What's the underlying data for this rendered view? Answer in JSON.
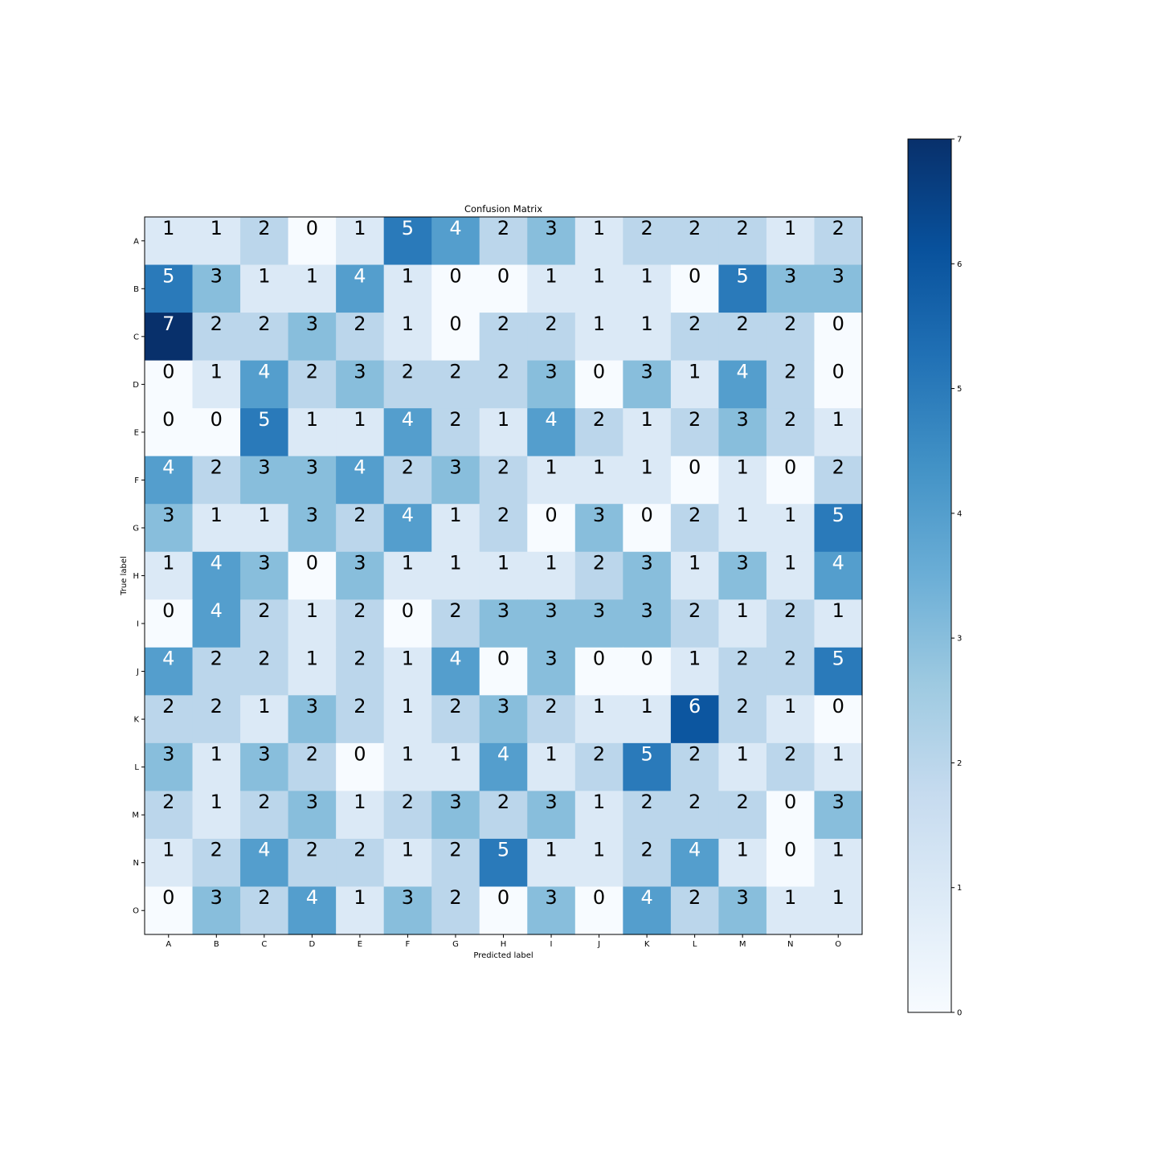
{
  "chart_data": {
    "type": "heatmap",
    "title": "Confusion Matrix",
    "xlabel": "Predicted label",
    "ylabel": "True label",
    "x_categories": [
      "A",
      "B",
      "C",
      "D",
      "E",
      "F",
      "G",
      "H",
      "I",
      "J",
      "K",
      "L",
      "M",
      "N",
      "O"
    ],
    "y_categories": [
      "A",
      "B",
      "C",
      "D",
      "E",
      "F",
      "G",
      "H",
      "I",
      "J",
      "K",
      "L",
      "M",
      "N",
      "O"
    ],
    "values": [
      [
        1,
        1,
        2,
        0,
        1,
        5,
        4,
        2,
        3,
        1,
        2,
        2,
        2,
        1,
        2
      ],
      [
        5,
        3,
        1,
        1,
        4,
        1,
        0,
        0,
        1,
        1,
        1,
        0,
        5,
        3,
        3
      ],
      [
        7,
        2,
        2,
        3,
        2,
        1,
        0,
        2,
        2,
        1,
        1,
        2,
        2,
        2,
        0
      ],
      [
        0,
        1,
        4,
        2,
        3,
        2,
        2,
        2,
        3,
        0,
        3,
        1,
        4,
        2,
        0
      ],
      [
        0,
        0,
        5,
        1,
        1,
        4,
        2,
        1,
        4,
        2,
        1,
        2,
        3,
        2,
        1
      ],
      [
        4,
        2,
        3,
        3,
        4,
        2,
        3,
        2,
        1,
        1,
        1,
        0,
        1,
        0,
        2
      ],
      [
        3,
        1,
        1,
        3,
        2,
        4,
        1,
        2,
        0,
        3,
        0,
        2,
        1,
        1,
        5
      ],
      [
        1,
        4,
        3,
        0,
        3,
        1,
        1,
        1,
        1,
        2,
        3,
        1,
        3,
        1,
        4
      ],
      [
        0,
        4,
        2,
        1,
        2,
        0,
        2,
        3,
        3,
        3,
        3,
        2,
        1,
        2,
        1
      ],
      [
        4,
        2,
        2,
        1,
        2,
        1,
        4,
        0,
        3,
        0,
        0,
        1,
        2,
        2,
        5
      ],
      [
        2,
        2,
        1,
        3,
        2,
        1,
        2,
        3,
        2,
        1,
        1,
        6,
        2,
        1,
        0
      ],
      [
        3,
        1,
        3,
        2,
        0,
        1,
        1,
        4,
        1,
        2,
        5,
        2,
        1,
        2,
        1
      ],
      [
        2,
        1,
        2,
        3,
        1,
        2,
        3,
        2,
        3,
        1,
        2,
        2,
        2,
        0,
        3
      ],
      [
        1,
        2,
        4,
        2,
        2,
        1,
        2,
        5,
        1,
        1,
        2,
        4,
        1,
        0,
        1
      ],
      [
        0,
        3,
        2,
        4,
        1,
        3,
        2,
        0,
        3,
        0,
        4,
        2,
        3,
        1,
        1
      ]
    ],
    "colormap": "Blues",
    "vmin": 0,
    "vmax": 7,
    "colorbar_ticks": [
      "0",
      "1",
      "2",
      "3",
      "4",
      "5",
      "6",
      "7"
    ],
    "grid": false,
    "legend": "colorbar-right"
  }
}
